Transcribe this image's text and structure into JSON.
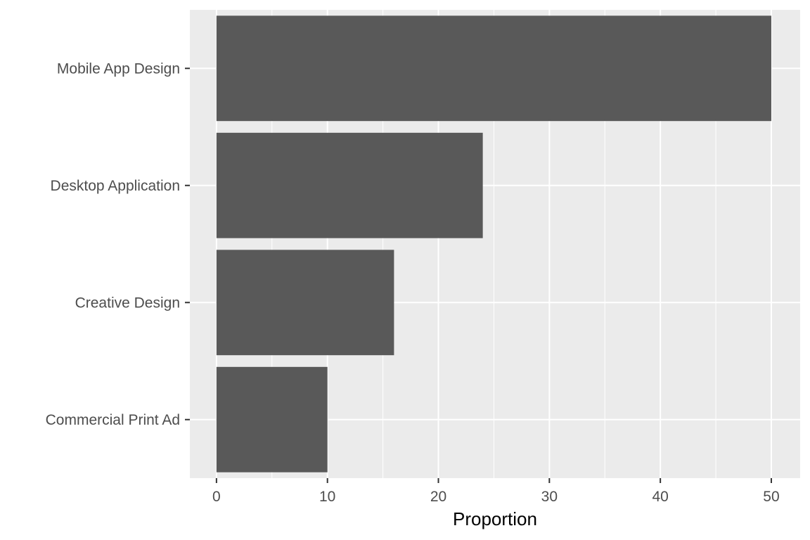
{
  "chart_data": {
    "type": "bar",
    "orientation": "horizontal",
    "categories": [
      "Mobile App Design",
      "Desktop Application",
      "Creative Design",
      "Commercial Print Ad"
    ],
    "values": [
      50,
      24,
      16,
      10
    ],
    "xlabel": "Proportion",
    "ylabel": "",
    "xlim": [
      -2.4,
      52.6
    ],
    "x_ticks": [
      0,
      10,
      20,
      30,
      40,
      50
    ],
    "x_tick_labels": [
      "0",
      "10",
      "20",
      "30",
      "40",
      "50"
    ],
    "grid": true,
    "legend": "none"
  },
  "colors": {
    "panel_background": "#ebebeb",
    "grid_major": "#ffffff",
    "grid_minor": "#ffffff",
    "bar_fill": "#595959",
    "tick_text": "#4d4d4d",
    "axis_title": "#000000"
  }
}
